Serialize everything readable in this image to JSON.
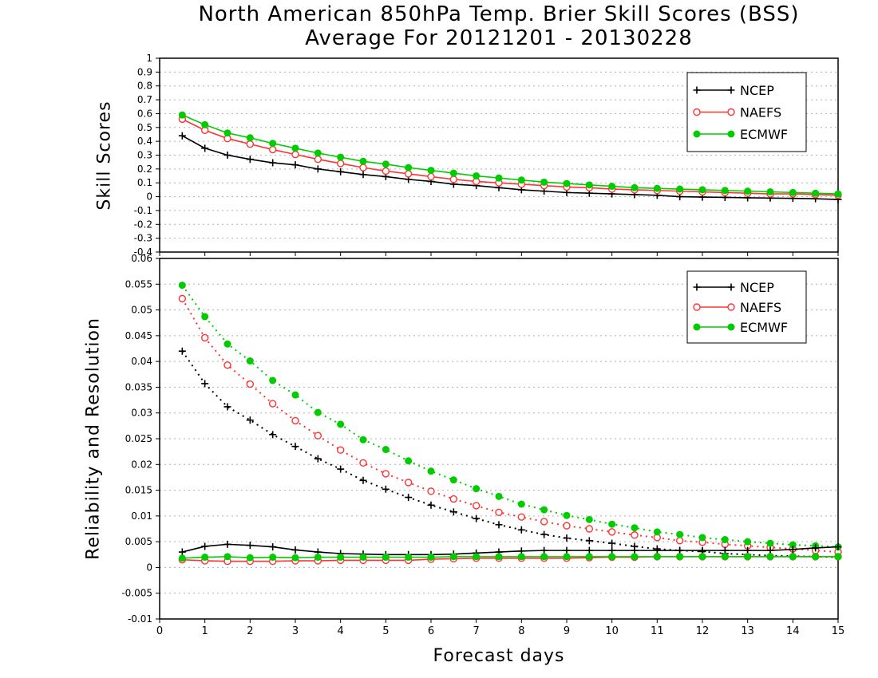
{
  "chart_data": [
    {
      "type": "line",
      "title": "North American 850hPa Temp. Brier Skill Scores (BSS)",
      "subtitle": "Average For 20121201 - 20130228",
      "ylabel": "Skill Scores",
      "xlabel": "",
      "xlim": [
        0,
        15
      ],
      "ylim": [
        -0.4,
        1
      ],
      "xticks": [
        0,
        1,
        2,
        3,
        4,
        5,
        6,
        7,
        8,
        9,
        10,
        11,
        12,
        13,
        14,
        15
      ],
      "xtick_labels": [],
      "yticks": [
        -0.4,
        -0.3,
        -0.2,
        -0.1,
        0,
        0.1,
        0.2,
        0.3,
        0.4,
        0.5,
        0.6,
        0.7,
        0.8,
        0.9,
        1
      ],
      "ytick_labels": [
        "-0.4",
        "-0.3",
        "-0.2",
        "-0.1",
        "0",
        "0.1",
        "0.2",
        "0.3",
        "0.4",
        "0.5",
        "0.6",
        "0.7",
        "0.8",
        "0.9",
        "1"
      ],
      "grid": true,
      "legend_position": "top-right",
      "x": [
        0.5,
        1,
        1.5,
        2,
        2.5,
        3,
        3.5,
        4,
        4.5,
        5,
        5.5,
        6,
        6.5,
        7,
        7.5,
        8,
        8.5,
        9,
        9.5,
        10,
        10.5,
        11,
        11.5,
        12,
        12.5,
        13,
        13.5,
        14,
        14.5,
        15
      ],
      "series": [
        {
          "name": "NCEP",
          "color": "#000000",
          "marker": "plus",
          "line": "solid",
          "values": [
            0.44,
            0.35,
            0.3,
            0.27,
            0.245,
            0.23,
            0.2,
            0.18,
            0.16,
            0.145,
            0.125,
            0.11,
            0.09,
            0.08,
            0.065,
            0.05,
            0.04,
            0.03,
            0.025,
            0.02,
            0.015,
            0.01,
            0.0,
            -0.003,
            -0.005,
            -0.008,
            -0.01,
            -0.012,
            -0.015,
            -0.02
          ]
        },
        {
          "name": "NAEFS",
          "color": "#ff3333",
          "marker": "open-circle",
          "line": "solid",
          "values": [
            0.56,
            0.48,
            0.42,
            0.38,
            0.34,
            0.305,
            0.27,
            0.24,
            0.21,
            0.185,
            0.165,
            0.145,
            0.125,
            0.11,
            0.1,
            0.09,
            0.08,
            0.07,
            0.065,
            0.055,
            0.05,
            0.045,
            0.04,
            0.035,
            0.03,
            0.025,
            0.02,
            0.02,
            0.015,
            0.01
          ]
        },
        {
          "name": "ECMWF",
          "color": "#00cc00",
          "marker": "filled-circle",
          "line": "solid",
          "values": [
            0.59,
            0.52,
            0.46,
            0.425,
            0.385,
            0.35,
            0.315,
            0.285,
            0.255,
            0.235,
            0.21,
            0.19,
            0.17,
            0.15,
            0.135,
            0.12,
            0.105,
            0.095,
            0.085,
            0.075,
            0.065,
            0.06,
            0.055,
            0.05,
            0.045,
            0.04,
            0.035,
            0.03,
            0.025,
            0.02
          ]
        }
      ]
    },
    {
      "type": "line",
      "title": "",
      "ylabel": "Reliability and Resolution",
      "xlabel": "Forecast days",
      "xlim": [
        0,
        15
      ],
      "ylim": [
        -0.01,
        0.06
      ],
      "xticks": [
        0,
        1,
        2,
        3,
        4,
        5,
        6,
        7,
        8,
        9,
        10,
        11,
        12,
        13,
        14,
        15
      ],
      "xtick_labels": [
        "0",
        "1",
        "2",
        "3",
        "4",
        "5",
        "6",
        "7",
        "8",
        "9",
        "10",
        "11",
        "12",
        "13",
        "14",
        "15"
      ],
      "yticks": [
        -0.01,
        -0.005,
        0,
        0.005,
        0.01,
        0.015,
        0.02,
        0.025,
        0.03,
        0.035,
        0.04,
        0.045,
        0.05,
        0.055,
        0.06
      ],
      "ytick_labels": [
        "-0.01",
        "-0.005",
        "0",
        "0.005",
        "0.01",
        "0.015",
        "0.02",
        "0.025",
        "0.03",
        "0.035",
        "0.04",
        "0.045",
        "0.05",
        "0.055",
        "0.06"
      ],
      "grid": true,
      "legend_position": "top-right",
      "x": [
        0.5,
        1,
        1.5,
        2,
        2.5,
        3,
        3.5,
        4,
        4.5,
        5,
        5.5,
        6,
        6.5,
        7,
        7.5,
        8,
        8.5,
        9,
        9.5,
        10,
        10.5,
        11,
        11.5,
        12,
        12.5,
        13,
        13.5,
        14,
        14.5,
        15
      ],
      "series": [
        {
          "name": "NCEP",
          "color": "#000000",
          "marker": "plus",
          "line": "dotted",
          "values": [
            0.042,
            0.0357,
            0.0312,
            0.0286,
            0.0258,
            0.0235,
            0.0211,
            0.0191,
            0.0169,
            0.0152,
            0.0136,
            0.0121,
            0.0108,
            0.0095,
            0.0083,
            0.0073,
            0.0064,
            0.0057,
            0.0052,
            0.0047,
            0.0041,
            0.0036,
            0.0033,
            0.0031,
            0.0027,
            0.0025,
            0.0023,
            0.0022,
            0.0021,
            0.002
          ]
        },
        {
          "name": "NAEFS",
          "color": "#ff3333",
          "marker": "open-circle",
          "line": "dotted",
          "values": [
            0.0522,
            0.0446,
            0.0393,
            0.0356,
            0.0318,
            0.0285,
            0.0256,
            0.0228,
            0.0203,
            0.0182,
            0.0165,
            0.0148,
            0.0133,
            0.012,
            0.0107,
            0.0098,
            0.0089,
            0.0081,
            0.0075,
            0.0069,
            0.0063,
            0.0058,
            0.0052,
            0.0049,
            0.0045,
            0.0042,
            0.0039,
            0.0036,
            0.0033,
            0.003
          ]
        },
        {
          "name": "ECMWF",
          "color": "#00cc00",
          "marker": "filled-circle",
          "line": "dotted",
          "values": [
            0.0548,
            0.0487,
            0.0434,
            0.0401,
            0.0363,
            0.0335,
            0.0301,
            0.0278,
            0.0248,
            0.0229,
            0.0207,
            0.0187,
            0.017,
            0.0153,
            0.0138,
            0.0123,
            0.0112,
            0.0101,
            0.0093,
            0.0084,
            0.0077,
            0.0069,
            0.0064,
            0.0058,
            0.0054,
            0.005,
            0.0047,
            0.0044,
            0.0042,
            0.004
          ]
        },
        {
          "name": "NCEP",
          "color": "#000000",
          "marker": "plus",
          "line": "solid",
          "legend": false,
          "values": [
            0.003,
            0.0041,
            0.0045,
            0.0043,
            0.004,
            0.0034,
            0.003,
            0.0027,
            0.0026,
            0.0025,
            0.0025,
            0.0025,
            0.0026,
            0.0028,
            0.003,
            0.0032,
            0.0033,
            0.0033,
            0.0033,
            0.0033,
            0.0033,
            0.0033,
            0.0033,
            0.0033,
            0.0033,
            0.0033,
            0.0033,
            0.0035,
            0.0038,
            0.004
          ]
        },
        {
          "name": "NAEFS",
          "color": "#ff3333",
          "marker": "open-circle",
          "line": "solid",
          "legend": false,
          "values": [
            0.0015,
            0.0013,
            0.0012,
            0.0012,
            0.0012,
            0.0013,
            0.0013,
            0.0014,
            0.0014,
            0.0014,
            0.0014,
            0.0016,
            0.0017,
            0.0018,
            0.0018,
            0.0018,
            0.0018,
            0.0018,
            0.0019,
            0.002,
            0.002,
            0.0021,
            0.0021,
            0.0021,
            0.0021,
            0.0021,
            0.0021,
            0.0021,
            0.0021,
            0.0021
          ]
        },
        {
          "name": "ECMWF",
          "color": "#00cc00",
          "marker": "filled-circle",
          "line": "solid",
          "legend": false,
          "values": [
            0.0018,
            0.002,
            0.0021,
            0.0019,
            0.002,
            0.0019,
            0.002,
            0.002,
            0.002,
            0.002,
            0.002,
            0.002,
            0.0021,
            0.0021,
            0.0021,
            0.0021,
            0.0021,
            0.0021,
            0.0021,
            0.0021,
            0.0021,
            0.0021,
            0.0021,
            0.0021,
            0.0021,
            0.0021,
            0.0021,
            0.0021,
            0.0021,
            0.0021
          ]
        }
      ]
    }
  ]
}
